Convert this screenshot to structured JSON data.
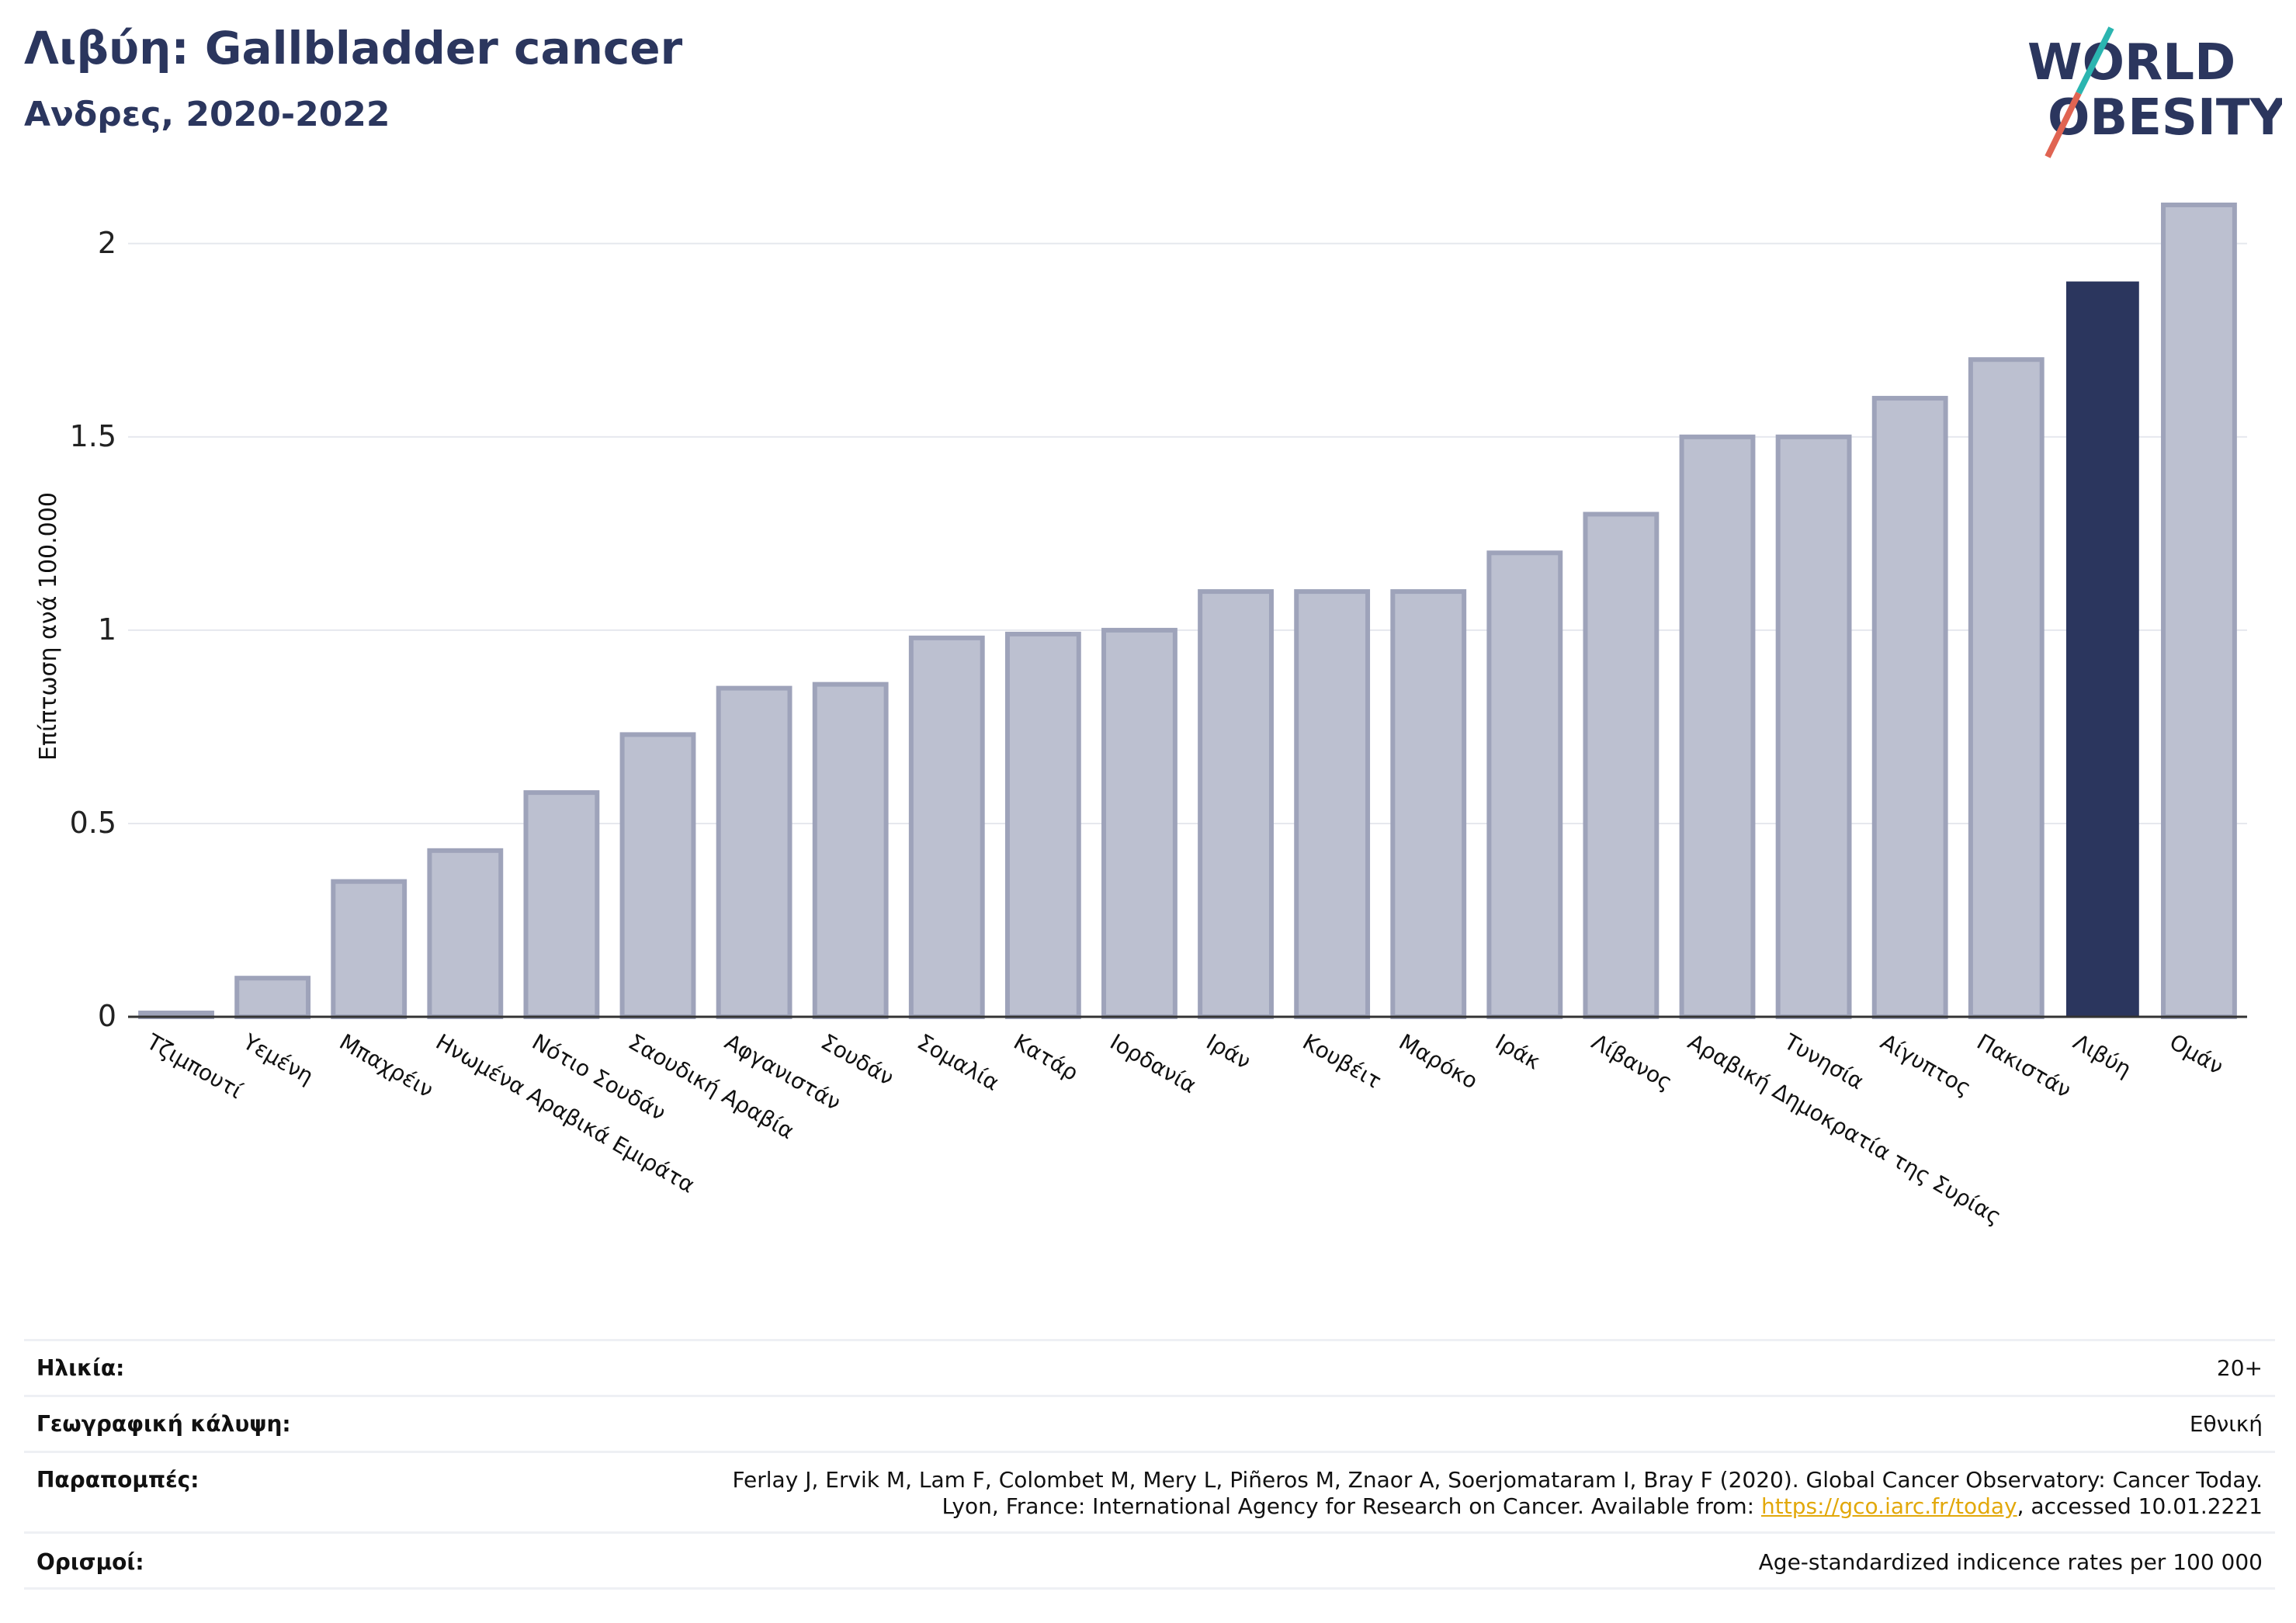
{
  "header": {
    "title": "Λιβύη: Gallbladder cancer",
    "subtitle": "Ανδρες, 2020-2022"
  },
  "logo": {
    "line1": "WORLD",
    "line2": "OBESITY",
    "colors": {
      "text": "#2b365e",
      "slash_teal": "#2bb5b0",
      "slash_red": "#e06452"
    }
  },
  "chart_data": {
    "type": "bar",
    "title": "Λιβύη: Gallbladder cancer",
    "subtitle": "Ανδρες, 2020-2022",
    "ylabel": "Επίπτωση ανά 100.000",
    "xlabel": "",
    "ylim": [
      0,
      2.1
    ],
    "yticks": [
      0,
      0.5,
      1,
      1.5,
      2
    ],
    "ytick_labels": [
      "0",
      "0.5",
      "1",
      "1.5",
      "2"
    ],
    "grid": "horizontal",
    "highlight": "Λιβύη",
    "colors": {
      "bar": "#bcc0d0",
      "bar_border": "#9ea3ba",
      "highlight": "#2b365e",
      "grid": "#e6e8ee",
      "axis": "#333333"
    },
    "categories": [
      "Τζιμπουτί",
      "Υεμένη",
      "Μπαχρέιν",
      "Ηνωμένα Αραβικά Εμιράτα",
      "Νότιο Σουδάν",
      "Σαουδική Αραβία",
      "Αφγανιστάν",
      "Σουδάν",
      "Σομαλία",
      "Κατάρ",
      "Ιορδανία",
      "Ιράν",
      "Κουβέιτ",
      "Μαρόκο",
      "Ιράκ",
      "Λίβανος",
      "Αραβική Δημοκρατία της Συρίας",
      "Τυνησία",
      "Αίγυπτος",
      "Πακιστάν",
      "Λιβύη",
      "Ομάν"
    ],
    "values": [
      0.01,
      0.1,
      0.35,
      0.43,
      0.58,
      0.73,
      0.85,
      0.86,
      0.98,
      0.99,
      1.0,
      1.1,
      1.1,
      1.1,
      1.2,
      1.3,
      1.5,
      1.5,
      1.6,
      1.7,
      1.9,
      2.1
    ]
  },
  "info": {
    "age_label": "Ηλικία:",
    "age_value": "20+",
    "coverage_label": "Γεωγραφική κάλυψη:",
    "coverage_value": "Εθνική",
    "refs_label": "Παραπομπές:",
    "refs_line1": "Ferlay J, Ervik M, Lam F, Colombet M, Mery L, Piñeros M, Znaor A, Soerjomataram I, Bray F (2020). Global Cancer Observatory: Cancer Today.",
    "refs_line2_pre": "Lyon, France: International Agency for Research on Cancer. Available from: ",
    "refs_link": "https://gco.iarc.fr/today",
    "refs_line2_post": ", accessed 10.01.2221",
    "definitions_label": "Ορισμοί:",
    "definitions_value": "Age-standardized indicence rates per 100 000"
  }
}
